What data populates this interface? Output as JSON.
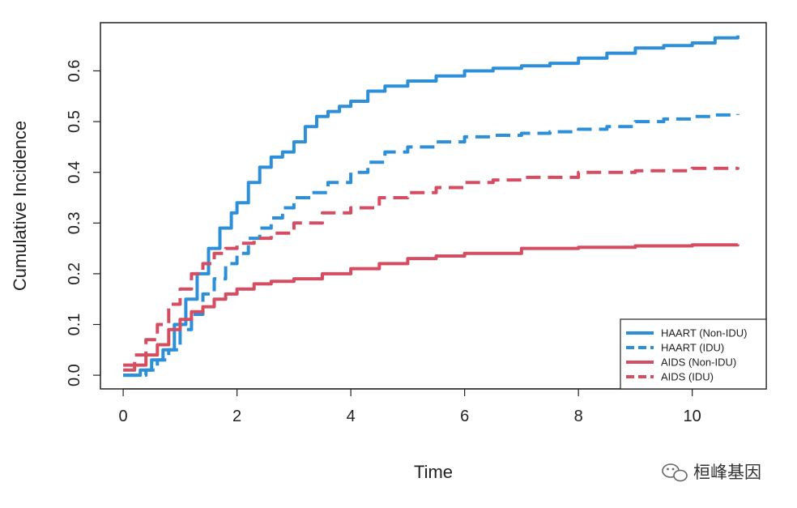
{
  "chart_data": {
    "type": "line",
    "title": "",
    "xlabel": "Time",
    "ylabel": "Cumulative Incidence",
    "xlim": [
      -0.4,
      11.3
    ],
    "ylim": [
      -0.027,
      0.695
    ],
    "xticks": [
      0,
      2,
      4,
      6,
      8,
      10
    ],
    "xtick_labels": [
      "0",
      "2",
      "4",
      "6",
      "8",
      "10"
    ],
    "yticks": [
      0.0,
      0.1,
      0.2,
      0.3,
      0.4,
      0.5,
      0.6
    ],
    "ytick_labels": [
      "0.0",
      "0.1",
      "0.2",
      "0.3",
      "0.4",
      "0.5",
      "0.6"
    ],
    "grid": false,
    "legend_position": "bottom-right",
    "series": [
      {
        "name": "HAART (Non-IDU)",
        "color": "#2e8fd9",
        "dash": "solid",
        "x": [
          0,
          0.1,
          0.3,
          0.5,
          0.7,
          0.9,
          1.1,
          1.3,
          1.5,
          1.7,
          1.9,
          2.0,
          2.2,
          2.4,
          2.6,
          2.8,
          3.0,
          3.2,
          3.4,
          3.6,
          3.8,
          4.0,
          4.3,
          4.6,
          5.0,
          5.5,
          6.0,
          6.5,
          7.0,
          7.5,
          8.0,
          8.5,
          9.0,
          9.5,
          10.0,
          10.4,
          10.8
        ],
        "y": [
          0.0,
          0.0,
          0.01,
          0.03,
          0.05,
          0.1,
          0.15,
          0.2,
          0.25,
          0.29,
          0.32,
          0.34,
          0.38,
          0.41,
          0.43,
          0.44,
          0.46,
          0.49,
          0.51,
          0.52,
          0.53,
          0.54,
          0.56,
          0.57,
          0.58,
          0.59,
          0.6,
          0.605,
          0.61,
          0.615,
          0.625,
          0.635,
          0.645,
          0.65,
          0.655,
          0.665,
          0.67
        ]
      },
      {
        "name": "HAART (IDU)",
        "color": "#2e8fd9",
        "dash": "dashed",
        "x": [
          0,
          0.2,
          0.4,
          0.6,
          0.8,
          1.0,
          1.2,
          1.4,
          1.6,
          1.8,
          2.0,
          2.2,
          2.4,
          2.6,
          2.8,
          3.0,
          3.3,
          3.6,
          4.0,
          4.3,
          4.6,
          5.0,
          5.5,
          6.0,
          6.5,
          7.0,
          7.5,
          8.0,
          8.5,
          9.0,
          9.5,
          10.0,
          10.4,
          10.8
        ],
        "y": [
          0.0,
          0.0,
          0.01,
          0.03,
          0.05,
          0.09,
          0.12,
          0.16,
          0.19,
          0.22,
          0.24,
          0.27,
          0.29,
          0.31,
          0.33,
          0.35,
          0.36,
          0.38,
          0.4,
          0.42,
          0.44,
          0.45,
          0.46,
          0.47,
          0.473,
          0.477,
          0.48,
          0.485,
          0.49,
          0.5,
          0.505,
          0.51,
          0.513,
          0.515
        ]
      },
      {
        "name": "AIDS (Non-IDU)",
        "color": "#d44d62",
        "dash": "solid",
        "x": [
          0,
          0.2,
          0.4,
          0.6,
          0.8,
          1.0,
          1.2,
          1.4,
          1.6,
          1.8,
          2.0,
          2.3,
          2.6,
          3.0,
          3.5,
          4.0,
          4.5,
          5.0,
          5.5,
          6.0,
          7.0,
          8.0,
          9.0,
          10.0,
          10.8
        ],
        "y": [
          0.01,
          0.02,
          0.04,
          0.06,
          0.09,
          0.11,
          0.125,
          0.135,
          0.15,
          0.16,
          0.17,
          0.18,
          0.185,
          0.19,
          0.2,
          0.21,
          0.22,
          0.23,
          0.235,
          0.24,
          0.25,
          0.252,
          0.255,
          0.257,
          0.258
        ]
      },
      {
        "name": "AIDS (IDU)",
        "color": "#d44d62",
        "dash": "dashed",
        "x": [
          0,
          0.2,
          0.4,
          0.6,
          0.8,
          1.0,
          1.2,
          1.4,
          1.6,
          1.8,
          2.0,
          2.3,
          2.6,
          3.0,
          3.5,
          4.0,
          4.5,
          5.0,
          5.5,
          6.0,
          6.5,
          7.0,
          8.0,
          9.0,
          10.0,
          10.8
        ],
        "y": [
          0.02,
          0.04,
          0.07,
          0.1,
          0.14,
          0.17,
          0.2,
          0.22,
          0.24,
          0.25,
          0.26,
          0.27,
          0.28,
          0.3,
          0.32,
          0.33,
          0.35,
          0.36,
          0.37,
          0.38,
          0.385,
          0.39,
          0.4,
          0.403,
          0.408,
          0.41
        ]
      }
    ]
  },
  "watermark": {
    "text": "桓峰基因",
    "icon": "wechat-icon"
  }
}
